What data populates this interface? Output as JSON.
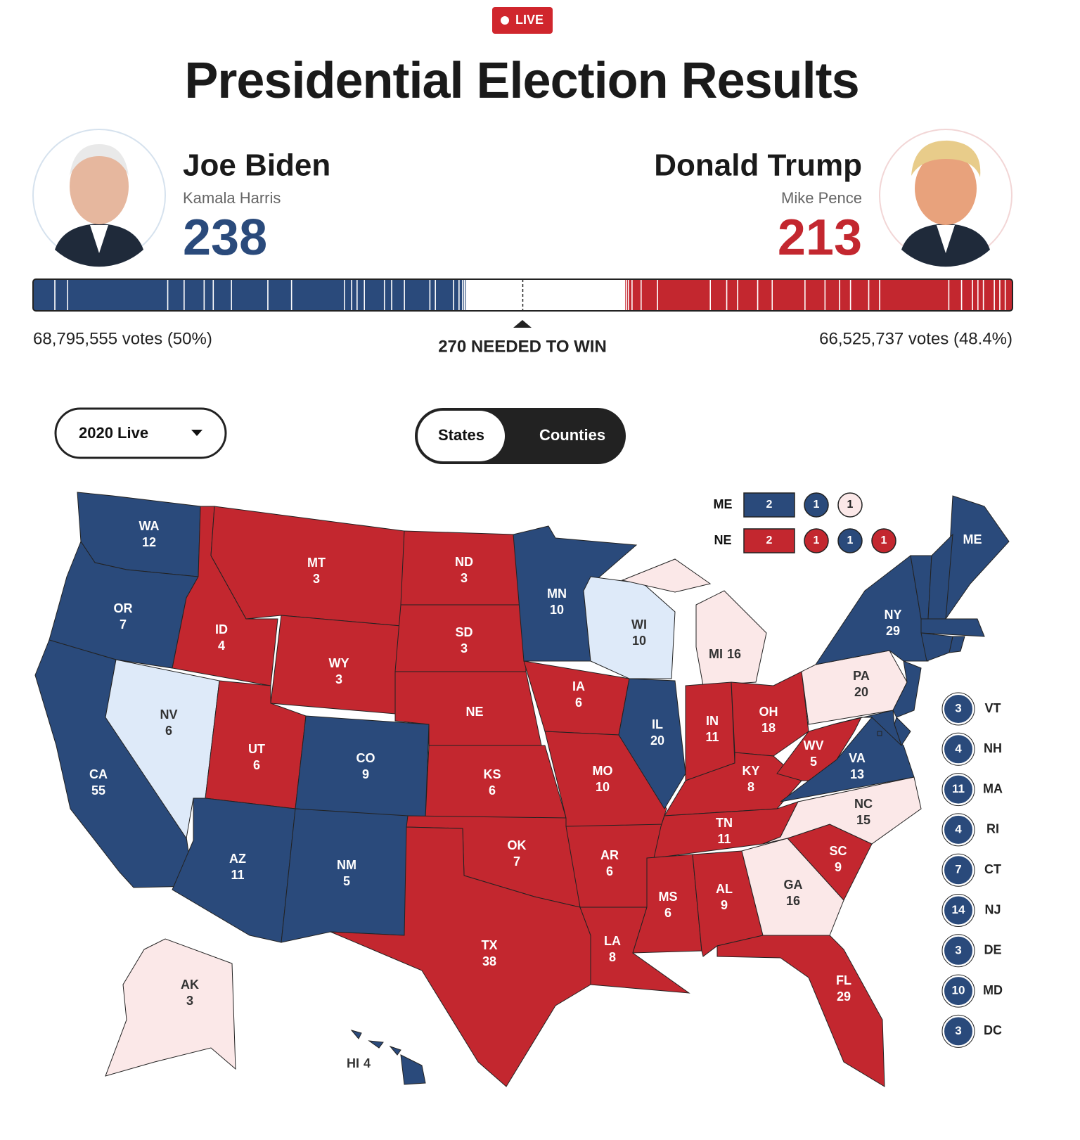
{
  "header": {
    "badge": "LIVE",
    "title": "Presidential Election Results"
  },
  "colors": {
    "dem": "#2a4a7b",
    "rep": "#c3272f",
    "lean-dem": "#deeaf9",
    "lean-rep": "#fbe8e8"
  },
  "candidates": [
    {
      "name": "Joe Biden",
      "running_mate": "Kamala Harris",
      "electoral_votes": 238,
      "popular_vote": "68,795,555 votes (50%)",
      "party": "dem"
    },
    {
      "name": "Donald Trump",
      "running_mate": "Mike Pence",
      "electoral_votes": 213,
      "popular_vote": "66,525,737 votes (48.4%)",
      "party": "rep"
    }
  ],
  "needed_to_win": "270 NEEDED TO WIN",
  "controls": {
    "year_select": "2020 Live",
    "view_toggle": [
      "States",
      "Counties"
    ]
  },
  "split_states": [
    {
      "abbr": "ME",
      "districts": [
        {
          "ev": 2,
          "status": "dem"
        },
        {
          "ev": 1,
          "status": "dem"
        },
        {
          "ev": 1,
          "status": "lean-rep"
        }
      ]
    },
    {
      "abbr": "NE",
      "districts": [
        {
          "ev": 2,
          "status": "rep"
        },
        {
          "ev": 1,
          "status": "rep"
        },
        {
          "ev": 1,
          "status": "dem"
        },
        {
          "ev": 1,
          "status": "rep"
        }
      ]
    }
  ],
  "states": [
    {
      "abbr": "WA",
      "ev": 12,
      "status": "dem"
    },
    {
      "abbr": "OR",
      "ev": 7,
      "status": "dem"
    },
    {
      "abbr": "CA",
      "ev": 55,
      "status": "dem"
    },
    {
      "abbr": "NV",
      "ev": 6,
      "status": "lean-dem"
    },
    {
      "abbr": "ID",
      "ev": 4,
      "status": "rep"
    },
    {
      "abbr": "MT",
      "ev": 3,
      "status": "rep"
    },
    {
      "abbr": "WY",
      "ev": 3,
      "status": "rep"
    },
    {
      "abbr": "UT",
      "ev": 6,
      "status": "rep"
    },
    {
      "abbr": "CO",
      "ev": 9,
      "status": "dem"
    },
    {
      "abbr": "AZ",
      "ev": 11,
      "status": "dem"
    },
    {
      "abbr": "NM",
      "ev": 5,
      "status": "dem"
    },
    {
      "abbr": "ND",
      "ev": 3,
      "status": "rep"
    },
    {
      "abbr": "SD",
      "ev": 3,
      "status": "rep"
    },
    {
      "abbr": "NE",
      "status": "rep"
    },
    {
      "abbr": "KS",
      "ev": 6,
      "status": "rep"
    },
    {
      "abbr": "OK",
      "ev": 7,
      "status": "rep"
    },
    {
      "abbr": "TX",
      "ev": 38,
      "status": "rep"
    },
    {
      "abbr": "MN",
      "ev": 10,
      "status": "dem"
    },
    {
      "abbr": "IA",
      "ev": 6,
      "status": "rep"
    },
    {
      "abbr": "MO",
      "ev": 10,
      "status": "rep"
    },
    {
      "abbr": "AR",
      "ev": 6,
      "status": "rep"
    },
    {
      "abbr": "LA",
      "ev": 8,
      "status": "rep"
    },
    {
      "abbr": "WI",
      "ev": 10,
      "status": "lean-dem"
    },
    {
      "abbr": "IL",
      "ev": 20,
      "status": "dem"
    },
    {
      "abbr": "MI",
      "ev": 16,
      "status": "lean-rep"
    },
    {
      "abbr": "IN",
      "ev": 11,
      "status": "rep"
    },
    {
      "abbr": "OH",
      "ev": 18,
      "status": "rep"
    },
    {
      "abbr": "KY",
      "ev": 8,
      "status": "rep"
    },
    {
      "abbr": "TN",
      "ev": 11,
      "status": "rep"
    },
    {
      "abbr": "MS",
      "ev": 6,
      "status": "rep"
    },
    {
      "abbr": "AL",
      "ev": 9,
      "status": "rep"
    },
    {
      "abbr": "GA",
      "ev": 16,
      "status": "lean-rep"
    },
    {
      "abbr": "FL",
      "ev": 29,
      "status": "rep"
    },
    {
      "abbr": "SC",
      "ev": 9,
      "status": "rep"
    },
    {
      "abbr": "NC",
      "ev": 15,
      "status": "lean-rep"
    },
    {
      "abbr": "VA",
      "ev": 13,
      "status": "dem"
    },
    {
      "abbr": "WV",
      "ev": 5,
      "status": "rep"
    },
    {
      "abbr": "PA",
      "ev": 20,
      "status": "lean-rep"
    },
    {
      "abbr": "NY",
      "ev": 29,
      "status": "dem"
    },
    {
      "abbr": "ME",
      "status": "dem"
    },
    {
      "abbr": "AK",
      "ev": 3,
      "status": "lean-rep"
    },
    {
      "abbr": "HI",
      "ev": 4,
      "status": "dem"
    }
  ],
  "small_states": [
    {
      "abbr": "VT",
      "ev": 3,
      "status": "dem"
    },
    {
      "abbr": "NH",
      "ev": 4,
      "status": "dem"
    },
    {
      "abbr": "MA",
      "ev": 11,
      "status": "dem"
    },
    {
      "abbr": "RI",
      "ev": 4,
      "status": "dem"
    },
    {
      "abbr": "CT",
      "ev": 7,
      "status": "dem"
    },
    {
      "abbr": "NJ",
      "ev": 14,
      "status": "dem"
    },
    {
      "abbr": "DE",
      "ev": 3,
      "status": "dem"
    },
    {
      "abbr": "MD",
      "ev": 10,
      "status": "dem"
    },
    {
      "abbr": "DC",
      "ev": 3,
      "status": "dem"
    }
  ]
}
